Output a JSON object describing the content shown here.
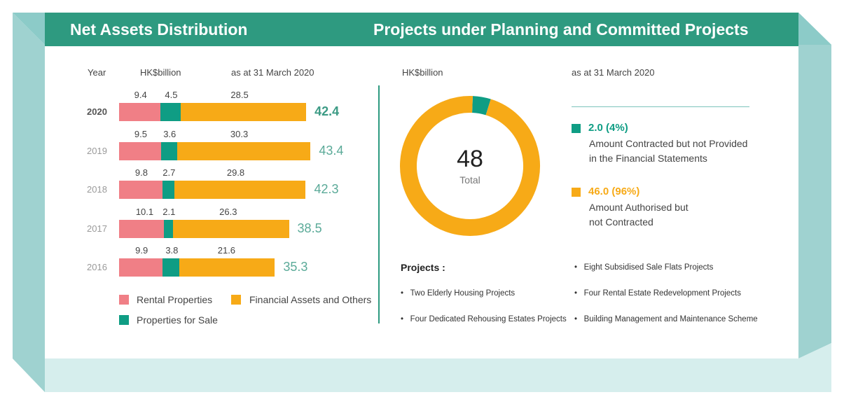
{
  "colors": {
    "header": "#2e9a80",
    "frame": "#9fd2d0",
    "frame_light": "#d6eeed",
    "rental": "#f07f86",
    "sale": "#0f9d84",
    "financial": "#f7aa17",
    "divider": "#2e9a80"
  },
  "left_title": "Net Assets Distribution",
  "right_title": "Projects under Planning and Committed Projects",
  "chart_data": [
    {
      "type": "bar",
      "orientation": "horizontal-stacked",
      "header": {
        "year": "Year",
        "unit": "HK$billion",
        "date": "as at 31 March 2020"
      },
      "categories": [
        "2020",
        "2019",
        "2018",
        "2017",
        "2016"
      ],
      "series": [
        {
          "name": "Rental Properties",
          "values": [
            9.4,
            9.5,
            9.8,
            10.1,
            9.9
          ]
        },
        {
          "name": "Properties for Sale",
          "values": [
            4.5,
            3.6,
            2.7,
            2.1,
            3.8
          ]
        },
        {
          "name": "Financial Assets and Others",
          "values": [
            28.5,
            30.3,
            29.8,
            26.3,
            21.6
          ]
        }
      ],
      "totals": [
        "42.4",
        "43.4",
        "42.3",
        "38.5",
        "35.3"
      ],
      "value_labels": [
        [
          "9.4",
          "4.5",
          "28.5"
        ],
        [
          "9.5",
          "3.6",
          "30.3"
        ],
        [
          "9.8",
          "2.7",
          "29.8"
        ],
        [
          "10.1",
          "2.1",
          "26.3"
        ],
        [
          "9.9",
          "3.8",
          "21.6"
        ]
      ],
      "legend": [
        "Rental Properties",
        "Financial Assets and Others",
        "Properties for Sale"
      ],
      "legend_placement": "bottom"
    },
    {
      "type": "pie",
      "style": "donut",
      "header": {
        "unit": "HK$billion",
        "date": "as at 31 March 2020"
      },
      "center_value": "48",
      "center_label": "Total",
      "slices": [
        {
          "value": 2.0,
          "percent": 4,
          "value_label": "2.0 (4%)",
          "line1": "Amount Contracted but not Provided",
          "line2": "in the Financial Statements"
        },
        {
          "value": 46.0,
          "percent": 96,
          "value_label": "46.0 (96%)",
          "line1": "Amount Authorised but",
          "line2": "not Contracted"
        }
      ]
    }
  ],
  "projects": {
    "heading": "Projects :",
    "items": [
      "Two Elderly Housing Projects",
      "Four Dedicated Rehousing Estates Projects",
      "Eight Subsidised Sale Flats Projects",
      "Four Rental Estate Redevelopment Projects",
      "Building Management and Maintenance Scheme"
    ]
  }
}
